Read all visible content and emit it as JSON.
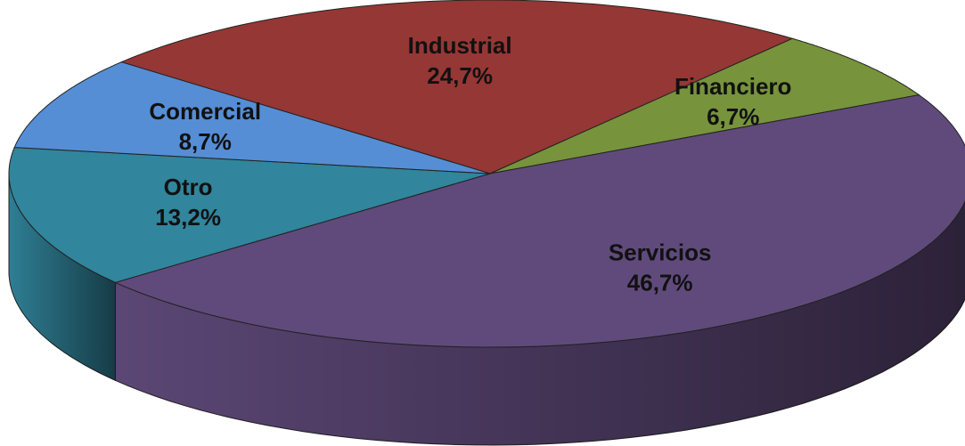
{
  "chart_data": {
    "type": "pie3d",
    "categories": [
      "Industrial",
      "Financiero",
      "Servicios",
      "Otro",
      "Comercial"
    ],
    "values": [
      24.7,
      6.7,
      46.7,
      13.2,
      8.7
    ],
    "value_labels": [
      "24,7%",
      "6,7%",
      "46,7%",
      "13,2%",
      "8,7%"
    ],
    "colors": [
      "#953735",
      "#77933c",
      "#604a7b",
      "#31859c",
      "#558ed5"
    ]
  }
}
